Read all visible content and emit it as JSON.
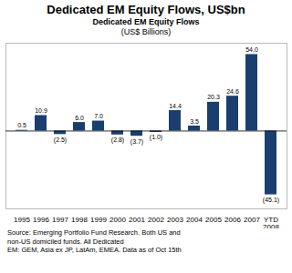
{
  "chart_data": {
    "type": "bar",
    "title": "Dedicated EM Equity Flows, US$bn",
    "subtitle": [
      "Dedicated EM Equity Flows",
      "(US$ Billions)"
    ],
    "categories": [
      "1995",
      "1996",
      "1997",
      "1998",
      "1999",
      "2000",
      "2001",
      "2002",
      "2003",
      "2004",
      "2005",
      "2006",
      "2007",
      "YTD\n2008"
    ],
    "values": [
      0.5,
      10.9,
      -2.5,
      6.0,
      7.0,
      -2.8,
      -3.7,
      -1.0,
      14.4,
      3.5,
      20.3,
      24.6,
      54.0,
      -45.1
    ],
    "value_labels": [
      "0.5",
      "10.9",
      "(2.5)",
      "6.0",
      "7.0",
      "(2.8)",
      "(3.7)",
      "(1.0)",
      "14.4",
      "3.5",
      "20.3",
      "24.6",
      "54.0",
      "(45.1)"
    ],
    "data_labels": true,
    "color": "#1a3f6f",
    "ylim": [
      -55,
      62
    ],
    "tick_labels": "x",
    "grid": false,
    "annotations": [
      "Source: Emerging Portfolio Fund Research. Both US and",
      "non-US domiciled funds. All Dedicated",
      "EM: GEM, Asia ex JP, LatAm, EMEA. Data as of Oct 15th"
    ]
  }
}
